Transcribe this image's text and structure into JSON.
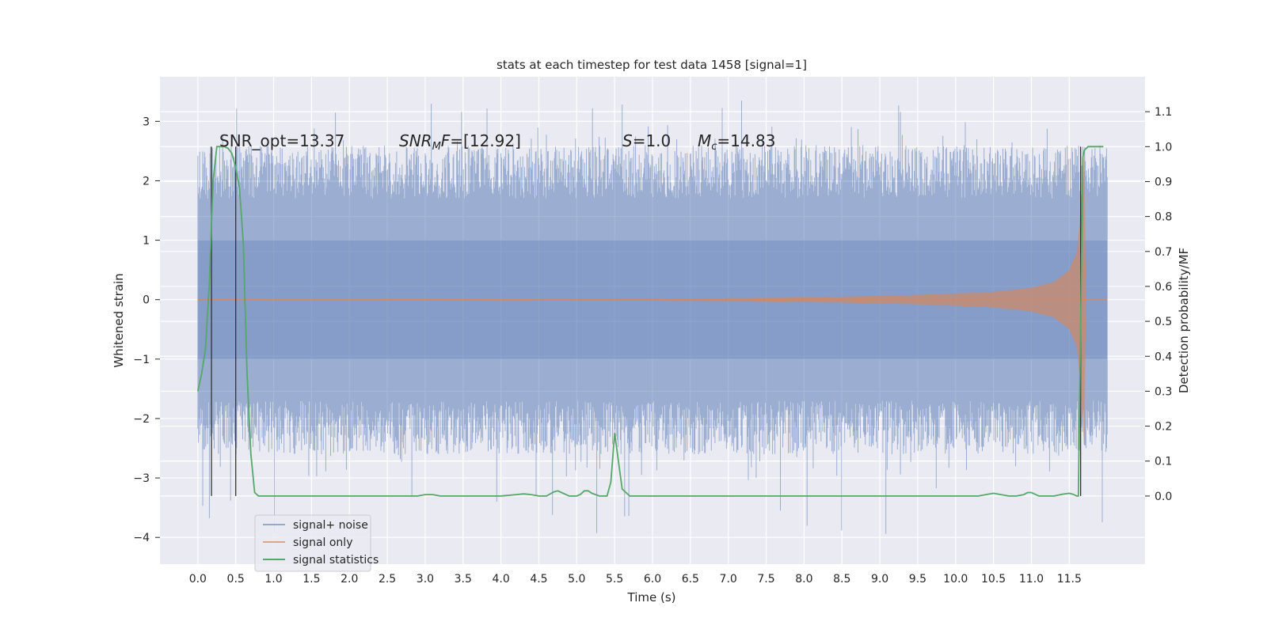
{
  "chart_data": {
    "type": "line",
    "title": "stats at each timestep for test data 1458 [signal=1]",
    "xlabel": "Time (s)",
    "ylabel": "Whitened strain",
    "y2label": "Detection probability/MF",
    "xlim": [
      -0.5,
      12.5
    ],
    "ylim": [
      -4.45,
      3.75
    ],
    "y2lim": [
      -0.195,
      1.2
    ],
    "grid": true,
    "legend_position": "lower-left",
    "x_ticks": [
      "0.0",
      "0.5",
      "1.0",
      "1.5",
      "2.0",
      "2.5",
      "3.0",
      "3.5",
      "4.0",
      "4.5",
      "5.0",
      "5.5",
      "6.0",
      "6.5",
      "7.0",
      "7.5",
      "8.0",
      "8.5",
      "9.0",
      "9.5",
      "10.0",
      "10.5",
      "11.0",
      "11.5"
    ],
    "y_ticks": [
      "3",
      "2",
      "1",
      "0",
      "−1",
      "−2",
      "−3",
      "−4"
    ],
    "y2_ticks": [
      "1.1",
      "1.0",
      "0.9",
      "0.8",
      "0.7",
      "0.6",
      "0.5",
      "0.4",
      "0.3",
      "0.2",
      "0.1",
      "0.0"
    ],
    "annotations": {
      "snr_opt": "SNR_opt=13.37",
      "snr_mf_main": "SNR",
      "snr_mf_sub": "M",
      "snr_mf_f": "F",
      "snr_mf_value": "=[12.92]",
      "s_label": "S",
      "s_value": "=1.0",
      "mc_main": "M",
      "mc_sub": "c",
      "mc_value": "=14.83"
    },
    "vertical_markers_x": [
      0.18,
      0.5,
      11.65
    ],
    "series": [
      {
        "name": "signal+ noise",
        "color": "#4c72b0",
        "x_range": [
          0.0,
          12.0
        ],
        "typical_range": [
          -1.7,
          1.7
        ],
        "min": -4.05,
        "max": 3.35
      },
      {
        "name": "signal only",
        "color": "#dd8452",
        "x_range": [
          0.0,
          12.0
        ],
        "envelope": [
          [
            0.0,
            0.005
          ],
          [
            3.0,
            0.008
          ],
          [
            6.0,
            0.015
          ],
          [
            7.5,
            0.03
          ],
          [
            8.5,
            0.05
          ],
          [
            9.5,
            0.08
          ],
          [
            10.5,
            0.13
          ],
          [
            11.0,
            0.2
          ],
          [
            11.3,
            0.3
          ],
          [
            11.5,
            0.5
          ],
          [
            11.6,
            0.8
          ],
          [
            11.65,
            1.5
          ],
          [
            11.7,
            2.5
          ],
          [
            11.72,
            0.0
          ],
          [
            12.0,
            0.0
          ]
        ]
      },
      {
        "name": "signal statistics",
        "color": "#55a868",
        "axis": "right",
        "x": [
          0.0,
          0.05,
          0.1,
          0.15,
          0.2,
          0.25,
          0.3,
          0.35,
          0.4,
          0.45,
          0.5,
          0.55,
          0.6,
          0.65,
          0.7,
          0.75,
          0.8,
          0.9,
          1.0,
          1.5,
          2.0,
          2.5,
          2.9,
          3.0,
          3.1,
          3.2,
          3.5,
          4.0,
          4.2,
          4.3,
          4.4,
          4.5,
          4.6,
          4.7,
          4.75,
          4.8,
          4.9,
          5.0,
          5.05,
          5.1,
          5.15,
          5.2,
          5.25,
          5.3,
          5.35,
          5.4,
          5.45,
          5.5,
          5.6,
          5.7,
          5.8,
          6.0,
          6.5,
          7.0,
          8.0,
          9.0,
          10.0,
          10.3,
          10.4,
          10.5,
          10.6,
          10.7,
          10.8,
          10.9,
          10.95,
          11.0,
          11.1,
          11.2,
          11.3,
          11.4,
          11.5,
          11.55,
          11.6,
          11.62,
          11.65,
          11.68,
          11.7,
          11.75,
          11.8,
          11.85,
          11.9,
          11.95
        ],
        "y": [
          0.3,
          0.35,
          0.42,
          0.6,
          0.9,
          1.0,
          1.0,
          1.0,
          0.995,
          0.98,
          0.94,
          0.88,
          0.72,
          0.35,
          0.12,
          0.01,
          0.0,
          0.0,
          0.0,
          0.0,
          0.0,
          0.0,
          0.0,
          0.004,
          0.004,
          0.0,
          0.0,
          0.0,
          0.004,
          0.006,
          0.004,
          0.0,
          0.0,
          0.012,
          0.015,
          0.01,
          0.0,
          0.0,
          0.005,
          0.015,
          0.015,
          0.008,
          0.004,
          0.0,
          0.0,
          0.0,
          0.04,
          0.18,
          0.02,
          0.0,
          0.0,
          0.0,
          0.0,
          0.0,
          0.0,
          0.0,
          0.0,
          0.0,
          0.004,
          0.008,
          0.004,
          0.0,
          0.0,
          0.004,
          0.01,
          0.01,
          0.0,
          0.0,
          0.0,
          0.005,
          0.008,
          0.005,
          0.0,
          0.0,
          0.5,
          0.97,
          0.99,
          1.0,
          1.0,
          1.0,
          1.0,
          1.0
        ]
      }
    ]
  }
}
